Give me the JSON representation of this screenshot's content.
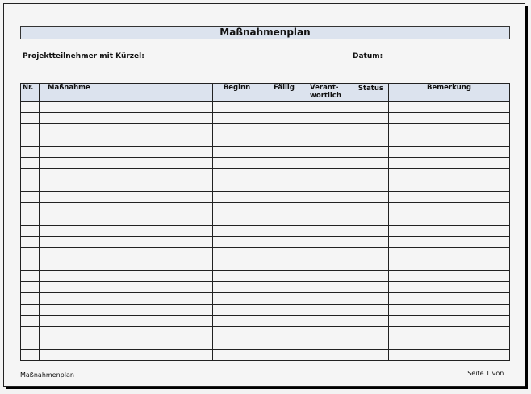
{
  "document": {
    "title": "Maßnahmenplan",
    "participants_label": "Projektteilnehmer mit Kürzel:",
    "date_label": "Datum:",
    "table": {
      "columns": [
        "Nr.",
        "Maßnahme",
        "Beginn",
        "Fällig",
        "Verant-wortlich",
        "Status",
        "Bemerkung"
      ],
      "empty_rows": 23
    },
    "footer": {
      "left": "Maßnahmenplan",
      "right": "Seite 1 von 1"
    }
  }
}
